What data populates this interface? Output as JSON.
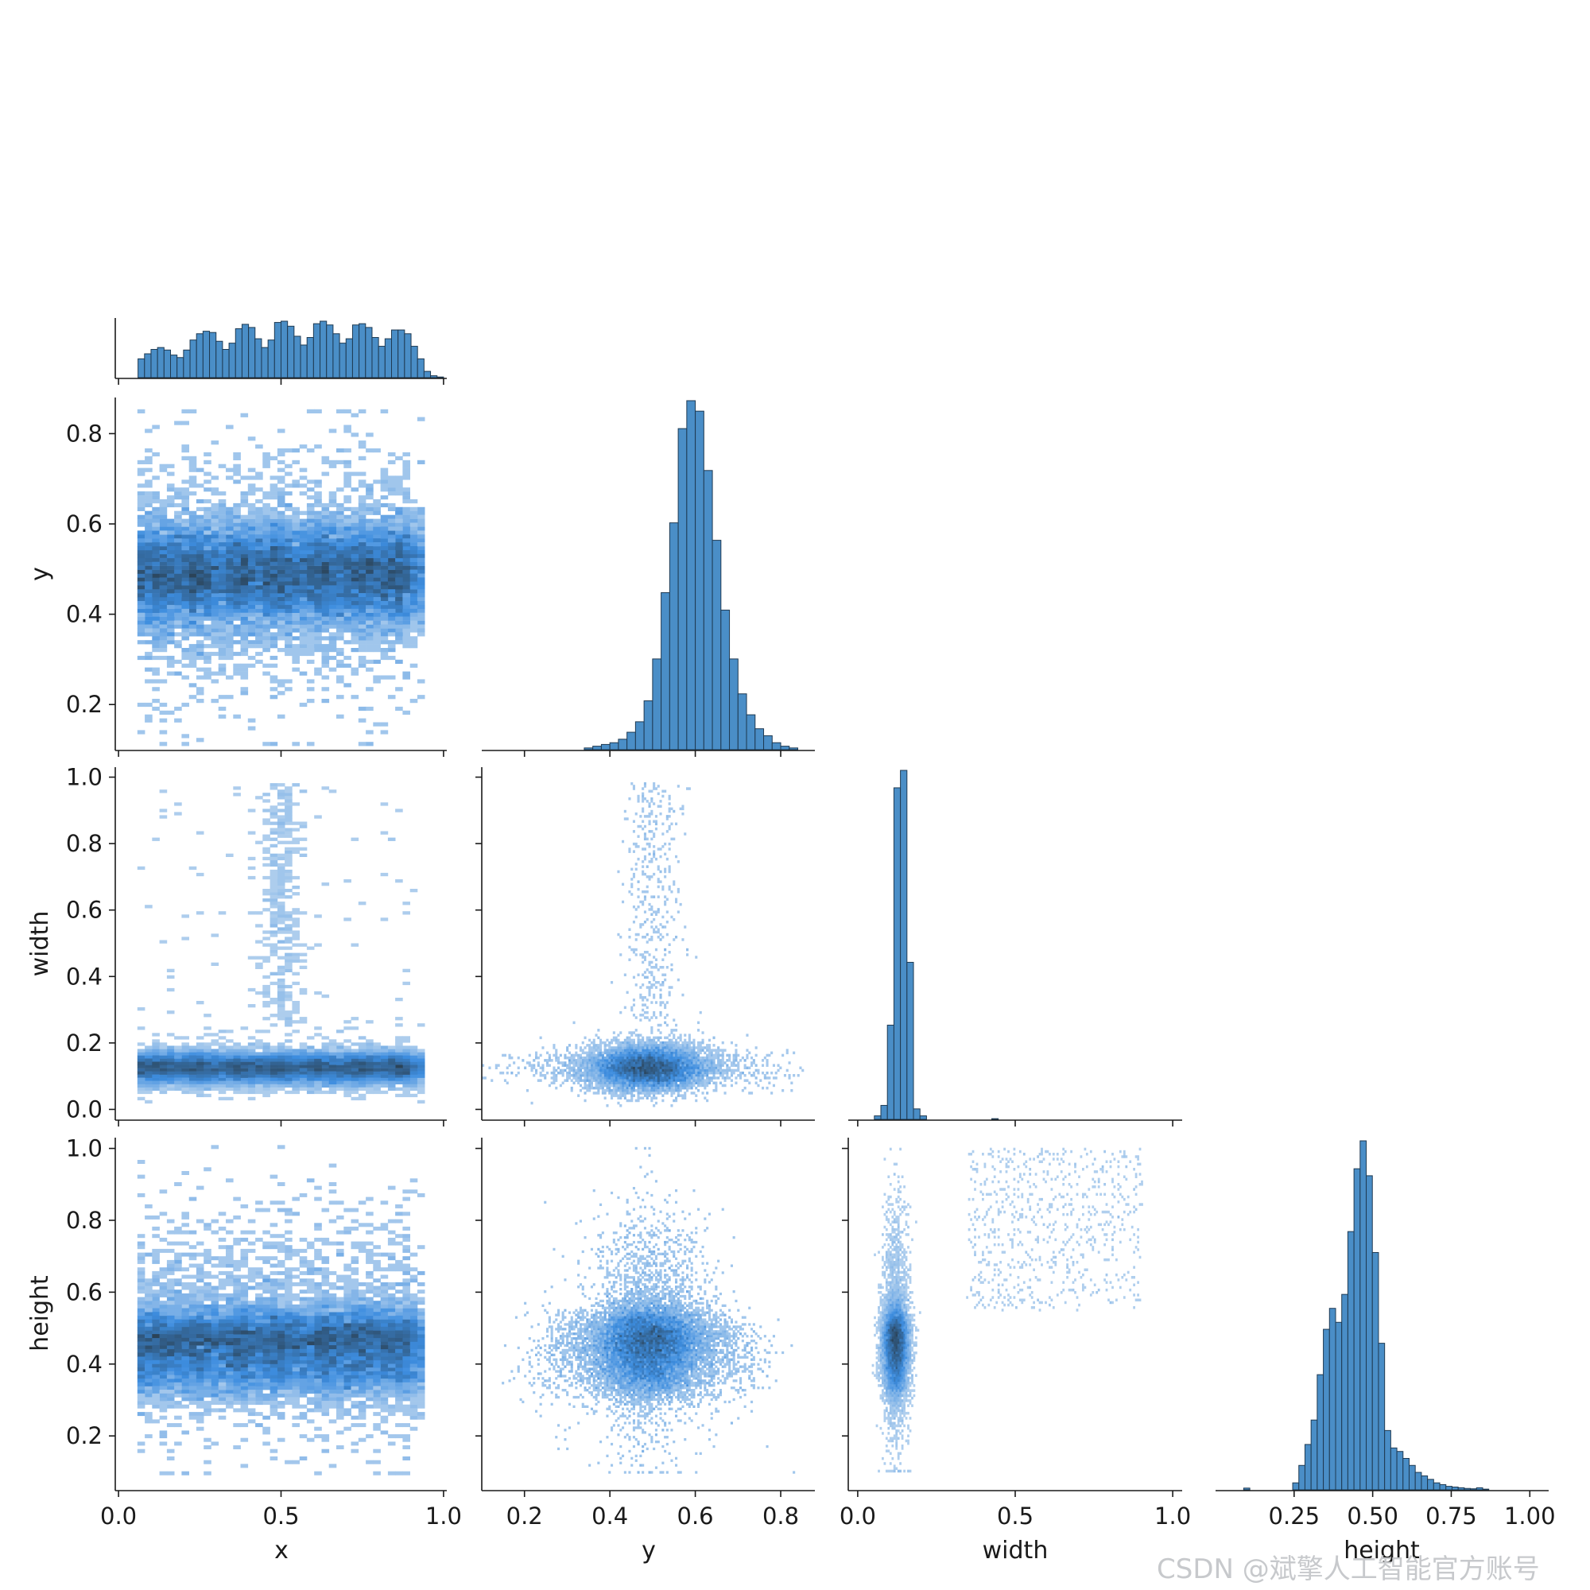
{
  "watermark": "CSDN @斌擎人工智能官方账号",
  "colors": {
    "bar": "#4a8ec7",
    "bar_edge": "#1f3a52",
    "density_light": "#c9ddf1",
    "density_mid": "#3d8ddf",
    "density_dark": "#2b4358"
  },
  "chart_data": {
    "type": "pairplot",
    "variables": [
      "x",
      "y",
      "width",
      "height"
    ],
    "corner": true,
    "diagonal": "histogram",
    "off_diagonal": "2d-histogram",
    "axes": {
      "x": {
        "lim": [
          -0.01,
          1.01
        ],
        "ticks": [
          "0.0",
          "0.5",
          "1.0"
        ],
        "tick_values": [
          0.0,
          0.5,
          1.0
        ]
      },
      "y": {
        "lim": [
          0.1,
          0.88
        ],
        "ticks": [
          "0.2",
          "0.4",
          "0.6",
          "0.8"
        ],
        "tick_values": [
          0.2,
          0.4,
          0.6,
          0.8
        ]
      },
      "width": {
        "lim": [
          -0.03,
          1.03
        ],
        "ticks": [
          "0.0",
          "0.2",
          "0.4",
          "0.6",
          "0.8",
          "1.0"
        ],
        "tick_values": [
          0.0,
          0.2,
          0.4,
          0.6,
          0.8,
          1.0
        ]
      },
      "height": {
        "lim": [
          0.05,
          1.03
        ],
        "ticks": [
          "0.2",
          "0.4",
          "0.6",
          "0.8",
          "1.0"
        ],
        "tick_values": [
          0.2,
          0.4,
          0.6,
          0.8,
          1.0
        ]
      },
      "height_diag_ticks": {
        "ticks": [
          "0.25",
          "0.50",
          "0.75",
          "1.00"
        ],
        "tick_values": [
          0.25,
          0.5,
          0.75,
          1.0
        ],
        "lim": [
          0.0,
          1.06
        ]
      }
    },
    "histograms": {
      "x": {
        "bin_edges_start": 0.0,
        "bin_width": 0.02,
        "values": [
          0,
          0,
          0,
          0.3,
          0.38,
          0.45,
          0.48,
          0.44,
          0.36,
          0.32,
          0.44,
          0.6,
          0.7,
          0.74,
          0.72,
          0.58,
          0.45,
          0.55,
          0.78,
          0.85,
          0.8,
          0.62,
          0.48,
          0.6,
          0.88,
          0.9,
          0.82,
          0.66,
          0.52,
          0.64,
          0.86,
          0.9,
          0.84,
          0.7,
          0.55,
          0.62,
          0.84,
          0.86,
          0.8,
          0.64,
          0.5,
          0.62,
          0.76,
          0.76,
          0.7,
          0.5,
          0.3,
          0.1,
          0.03,
          0.01,
          0
        ]
      },
      "y": {
        "bin_edges_start": 0.1,
        "bin_width": 0.02,
        "values": [
          0,
          0,
          0,
          0,
          0,
          0,
          0,
          0,
          0,
          0,
          0,
          0,
          0.005,
          0.01,
          0.015,
          0.02,
          0.03,
          0.05,
          0.08,
          0.14,
          0.26,
          0.45,
          0.65,
          0.92,
          1.0,
          0.97,
          0.8,
          0.6,
          0.4,
          0.26,
          0.16,
          0.1,
          0.06,
          0.04,
          0.02,
          0.01,
          0.005,
          0,
          0,
          0
        ]
      },
      "width": {
        "bin_edges_start": -0.03,
        "bin_width": 0.0207,
        "values": [
          0,
          0,
          0,
          0,
          0.01,
          0.04,
          0.27,
          0.95,
          1.0,
          0.45,
          0.03,
          0.01,
          0,
          0,
          0,
          0,
          0,
          0,
          0,
          0,
          0,
          0,
          0.002,
          0,
          0,
          0,
          0,
          0,
          0,
          0,
          0,
          0,
          0,
          0,
          0,
          0,
          0,
          0,
          0,
          0,
          0,
          0,
          0,
          0,
          0,
          0,
          0,
          0,
          0,
          0,
          0
        ]
      },
      "height": {
        "bin_edges_start": 0.07,
        "bin_width": 0.0195,
        "values": [
          0,
          0.005,
          0,
          0,
          0,
          0,
          0,
          0,
          0,
          0.02,
          0.07,
          0.13,
          0.2,
          0.33,
          0.46,
          0.52,
          0.48,
          0.56,
          0.74,
          0.92,
          1.0,
          0.9,
          0.68,
          0.42,
          0.17,
          0.12,
          0.11,
          0.09,
          0.07,
          0.05,
          0.04,
          0.03,
          0.02,
          0.015,
          0.01,
          0.008,
          0.006,
          0.004,
          0.003,
          0.006,
          0.002,
          0,
          0
        ]
      }
    },
    "joint_peaks": {
      "x_vs_y": {
        "description_values": {
          "y_center": 0.48,
          "x_clusters": [
            0.12,
            0.24,
            0.37,
            0.49,
            0.62,
            0.74,
            0.86
          ]
        }
      },
      "x_vs_width": {
        "description_values": {
          "width_center": 0.13,
          "tail_near_x": 0.5,
          "tail_max_width": 1.0
        }
      },
      "x_vs_height": {
        "description_values": {
          "height_center": 0.47,
          "secondary_band": 0.38
        }
      },
      "y_vs_width": {
        "description_values": {
          "y_center": 0.49,
          "width_center": 0.13
        }
      },
      "y_vs_height": {
        "description_values": {
          "y_center": 0.49,
          "height_center": 0.47,
          "apex": [
            0.5,
            1.0
          ]
        }
      },
      "width_vs_height": {
        "description_values": {
          "width_center": 0.12,
          "height_center": 0.46
        }
      }
    }
  }
}
